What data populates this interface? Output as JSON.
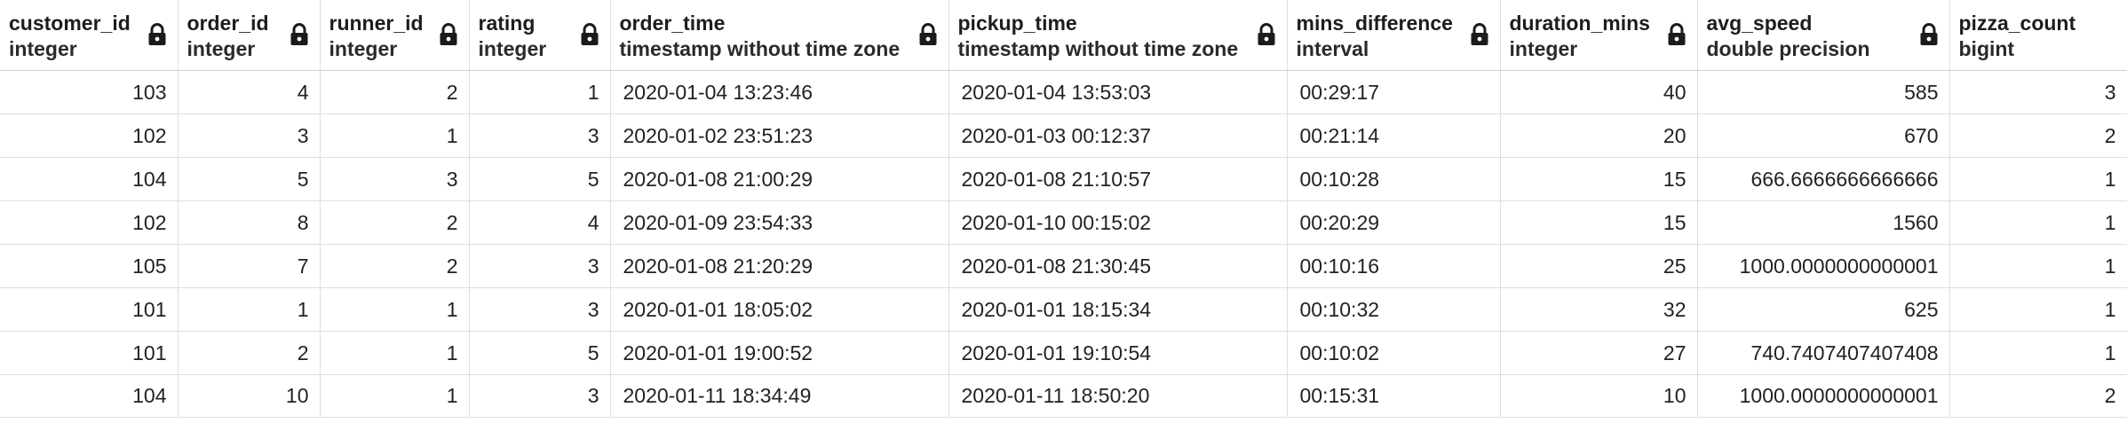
{
  "columns": [
    {
      "name": "customer_id",
      "type": "integer",
      "align": "right",
      "lock_icon": "lock-icon"
    },
    {
      "name": "order_id",
      "type": "integer",
      "align": "right",
      "lock_icon": "lock-icon"
    },
    {
      "name": "runner_id",
      "type": "integer",
      "align": "right",
      "lock_icon": "lock-icon"
    },
    {
      "name": "rating",
      "type": "integer",
      "align": "right",
      "lock_icon": "lock-icon"
    },
    {
      "name": "order_time",
      "type": "timestamp without time zone",
      "align": "left",
      "lock_icon": "lock-icon"
    },
    {
      "name": "pickup_time",
      "type": "timestamp without time zone",
      "align": "left",
      "lock_icon": "lock-icon"
    },
    {
      "name": "mins_difference",
      "type": "interval",
      "align": "left",
      "lock_icon": "lock-icon"
    },
    {
      "name": "duration_mins",
      "type": "integer",
      "align": "right",
      "lock_icon": "lock-icon"
    },
    {
      "name": "avg_speed",
      "type": "double precision",
      "align": "right",
      "lock_icon": "lock-icon"
    },
    {
      "name": "pizza_count",
      "type": "bigint",
      "align": "right",
      "lock_icon": ""
    }
  ],
  "rows": [
    [
      "103",
      "4",
      "2",
      "1",
      "2020-01-04 13:23:46",
      "2020-01-04 13:53:03",
      "00:29:17",
      "40",
      "585",
      "3"
    ],
    [
      "102",
      "3",
      "1",
      "3",
      "2020-01-02 23:51:23",
      "2020-01-03 00:12:37",
      "00:21:14",
      "20",
      "670",
      "2"
    ],
    [
      "104",
      "5",
      "3",
      "5",
      "2020-01-08 21:00:29",
      "2020-01-08 21:10:57",
      "00:10:28",
      "15",
      "666.6666666666666",
      "1"
    ],
    [
      "102",
      "8",
      "2",
      "4",
      "2020-01-09 23:54:33",
      "2020-01-10 00:15:02",
      "00:20:29",
      "15",
      "1560",
      "1"
    ],
    [
      "105",
      "7",
      "2",
      "3",
      "2020-01-08 21:20:29",
      "2020-01-08 21:30:45",
      "00:10:16",
      "25",
      "1000.0000000000001",
      "1"
    ],
    [
      "101",
      "1",
      "1",
      "3",
      "2020-01-01 18:05:02",
      "2020-01-01 18:15:34",
      "00:10:32",
      "32",
      "625",
      "1"
    ],
    [
      "101",
      "2",
      "1",
      "5",
      "2020-01-01 19:00:52",
      "2020-01-01 19:10:54",
      "00:10:02",
      "27",
      "740.7407407407408",
      "1"
    ],
    [
      "104",
      "10",
      "1",
      "3",
      "2020-01-11 18:34:49",
      "2020-01-11 18:50:20",
      "00:15:31",
      "10",
      "1000.0000000000001",
      "2"
    ]
  ]
}
